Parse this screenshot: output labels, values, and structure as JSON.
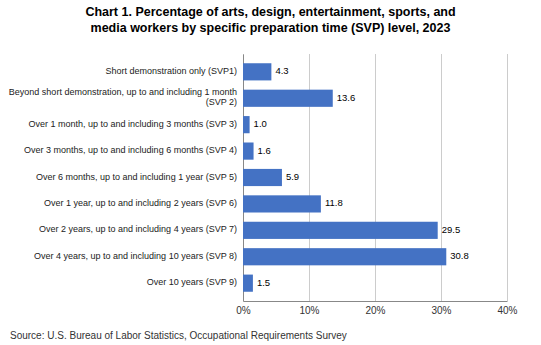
{
  "chart_data": {
    "type": "bar",
    "orientation": "horizontal",
    "title": "Chart 1. Percentage of arts, design, entertainment, sports, and\nmedia workers by specific preparation time (SVP) level, 2023",
    "categories": [
      "Short demonstration only (SVP1)",
      "Beyond short demonstration, up to and including 1 month\n(SVP 2)",
      "Over 1 month, up to and including 3 months (SVP 3)",
      "Over 3 months, up to and including 6 months (SVP 4)",
      "Over 6 months, up to and including 1 year (SVP 5)",
      "Over 1 year, up to and including 2 years (SVP 6)",
      "Over 2 years, up to and including 4 years (SVP 7)",
      "Over 4 years, up to and including 10 years (SVP 8)",
      "Over 10 years (SVP 9)"
    ],
    "values": [
      4.3,
      13.6,
      1.0,
      1.6,
      5.9,
      11.8,
      29.5,
      30.8,
      1.5
    ],
    "value_labels": [
      "4.3",
      "13.6",
      "1.0",
      "1.6",
      "5.9",
      "11.8",
      "29.5",
      "30.8",
      "1.5"
    ],
    "data_labels": true,
    "color": "#4472C4",
    "xlim": [
      0,
      40
    ],
    "xticks": [
      {
        "value": 0,
        "label": "0%"
      },
      {
        "value": 10,
        "label": "10%"
      },
      {
        "value": 20,
        "label": "20%"
      },
      {
        "value": 30,
        "label": "30%"
      },
      {
        "value": 40,
        "label": "40%"
      }
    ],
    "grid": true,
    "source": "Source: U.S. Bureau of Labor Statistics, Occupational Requirements Survey"
  }
}
